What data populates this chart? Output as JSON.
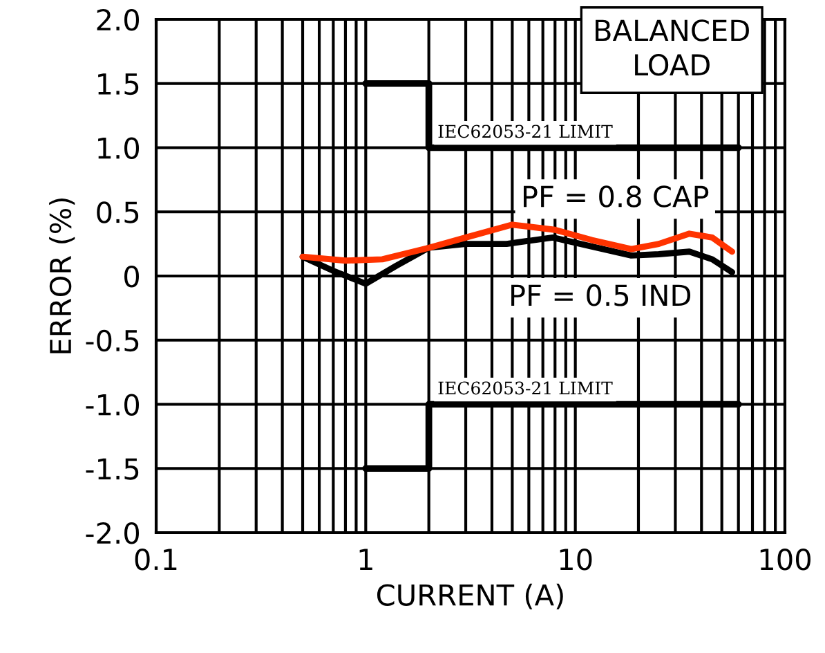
{
  "chart_data": {
    "type": "line",
    "xlabel": "CURRENT (A)",
    "ylabel": "ERROR (%)",
    "log": "x",
    "grid": true,
    "legend": false,
    "xlim": [
      0.1,
      100
    ],
    "xticks": [
      0.1,
      1,
      10,
      100
    ],
    "ylim": [
      -2.0,
      2.0
    ],
    "yticks": [
      {
        "value": -2,
        "label": "-2.0"
      },
      {
        "value": -1.5,
        "label": "-1.5"
      },
      {
        "value": -1,
        "label": "-1.0"
      },
      {
        "value": -0.5,
        "label": "-0.5"
      },
      {
        "value": 0,
        "label": "0"
      },
      {
        "value": 0.5,
        "label": "0.5"
      },
      {
        "value": 1,
        "label": "1.0"
      },
      {
        "value": 1.5,
        "label": "1.5"
      },
      {
        "value": 2,
        "label": "2.0"
      }
    ],
    "annotations": [
      "BALANCED LOAD"
    ],
    "series": [
      {
        "name": "IEC62053-21 LIMIT",
        "type": "step",
        "color": "#000000",
        "x": [
          1,
          2,
          60
        ],
        "values": [
          1.5,
          1.0,
          1.0
        ]
      },
      {
        "name": "IEC62053-21 LIMIT",
        "type": "step",
        "color": "#000000",
        "x": [
          1,
          2,
          60
        ],
        "values": [
          -1.5,
          -1.0,
          -1.0
        ]
      },
      {
        "name": "PF = 0.5 IND",
        "color": "#000000",
        "x": [
          0.5,
          0.7,
          1,
          1.4,
          2,
          3,
          4.7,
          7.8,
          12,
          18.5,
          25,
          35,
          45,
          56
        ],
        "values": [
          0.15,
          0.04,
          -0.06,
          0.08,
          0.22,
          0.25,
          0.25,
          0.3,
          0.23,
          0.16,
          0.17,
          0.19,
          0.13,
          0.03
        ]
      },
      {
        "name": "PF = 0.8 CAP",
        "color": "#ff3300",
        "x": [
          0.5,
          0.8,
          1.2,
          2,
          3,
          5,
          8,
          12,
          18.5,
          25,
          35,
          45,
          56
        ],
        "values": [
          0.15,
          0.12,
          0.13,
          0.22,
          0.3,
          0.4,
          0.36,
          0.28,
          0.21,
          0.25,
          0.33,
          0.3,
          0.19
        ]
      }
    ]
  }
}
